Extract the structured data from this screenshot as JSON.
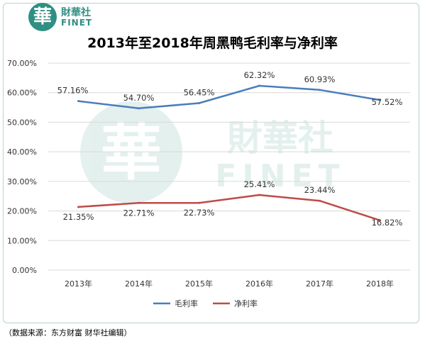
{
  "logo": {
    "seal": "華",
    "name_cn": "財華社",
    "name_en": "FINET"
  },
  "watermark": {
    "seal": "華",
    "name_cn": "財華社",
    "name_en": "FINET"
  },
  "source": "（数据来源：东方财富 财华社编辑）",
  "colors": {
    "gross": "#4a7ebb",
    "net": "#be4b48",
    "grid": "#d9d9d9",
    "accent": "#2f8f83"
  },
  "chart_data": {
    "type": "line",
    "title": "2013年至2018年周黑鸭毛利率与净利率",
    "categories": [
      "2013年",
      "2014年",
      "2015年",
      "2016年",
      "2017年",
      "2018年"
    ],
    "series": [
      {
        "name": "毛利率",
        "values": [
          57.16,
          54.7,
          56.45,
          62.32,
          60.93,
          57.52
        ],
        "labels": [
          "57.16%",
          "54.70%",
          "56.45%",
          "62.32%",
          "60.93%",
          "57.52%"
        ]
      },
      {
        "name": "净利率",
        "values": [
          21.35,
          22.71,
          22.73,
          25.41,
          23.44,
          16.82
        ],
        "labels": [
          "21.35%",
          "22.71%",
          "22.73%",
          "25.41%",
          "23.44%",
          "16.82%"
        ]
      }
    ],
    "yticks": [
      "0.00%",
      "10.00%",
      "20.00%",
      "30.00%",
      "40.00%",
      "50.00%",
      "60.00%",
      "70.00%"
    ],
    "ylim": [
      0,
      70
    ],
    "grid": true,
    "legend": "bottom"
  }
}
